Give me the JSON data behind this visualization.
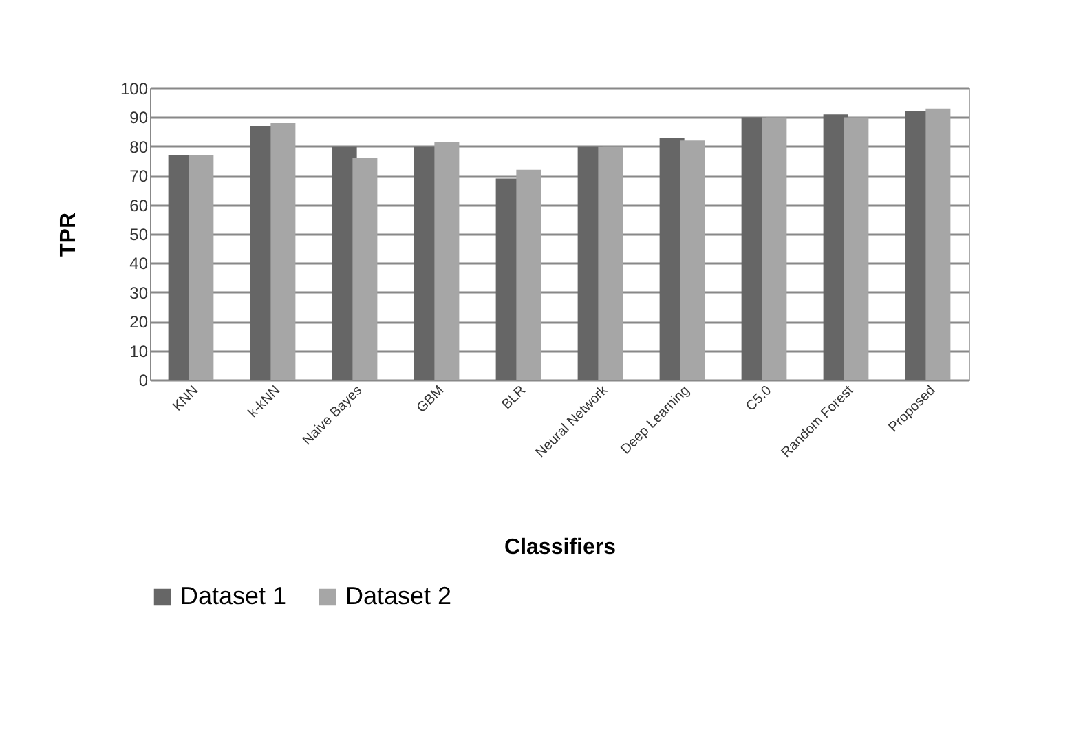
{
  "chart_data": {
    "type": "bar",
    "xlabel": "Classifiers",
    "ylabel": "TPR",
    "categories": [
      "KNN",
      "k-kNN",
      "Naive Bayes",
      "GBM",
      "BLR",
      "Neural Network",
      "Deep Learning",
      "C5.0",
      "Random Forest",
      "Proposed"
    ],
    "series": [
      {
        "name": "Dataset 1",
        "color": "#666666",
        "values": [
          77,
          87,
          80,
          80,
          69,
          80,
          83,
          90,
          91,
          92
        ]
      },
      {
        "name": "Dataset 2",
        "color": "#a6a6a6",
        "values": [
          77,
          88,
          76,
          81.5,
          72,
          80,
          82,
          90,
          90,
          93
        ]
      }
    ],
    "ylim": [
      0,
      100
    ],
    "yticks": [
      0,
      10,
      20,
      30,
      40,
      50,
      60,
      70,
      80,
      90,
      100
    ],
    "grid": "y",
    "legend": "bottom"
  }
}
